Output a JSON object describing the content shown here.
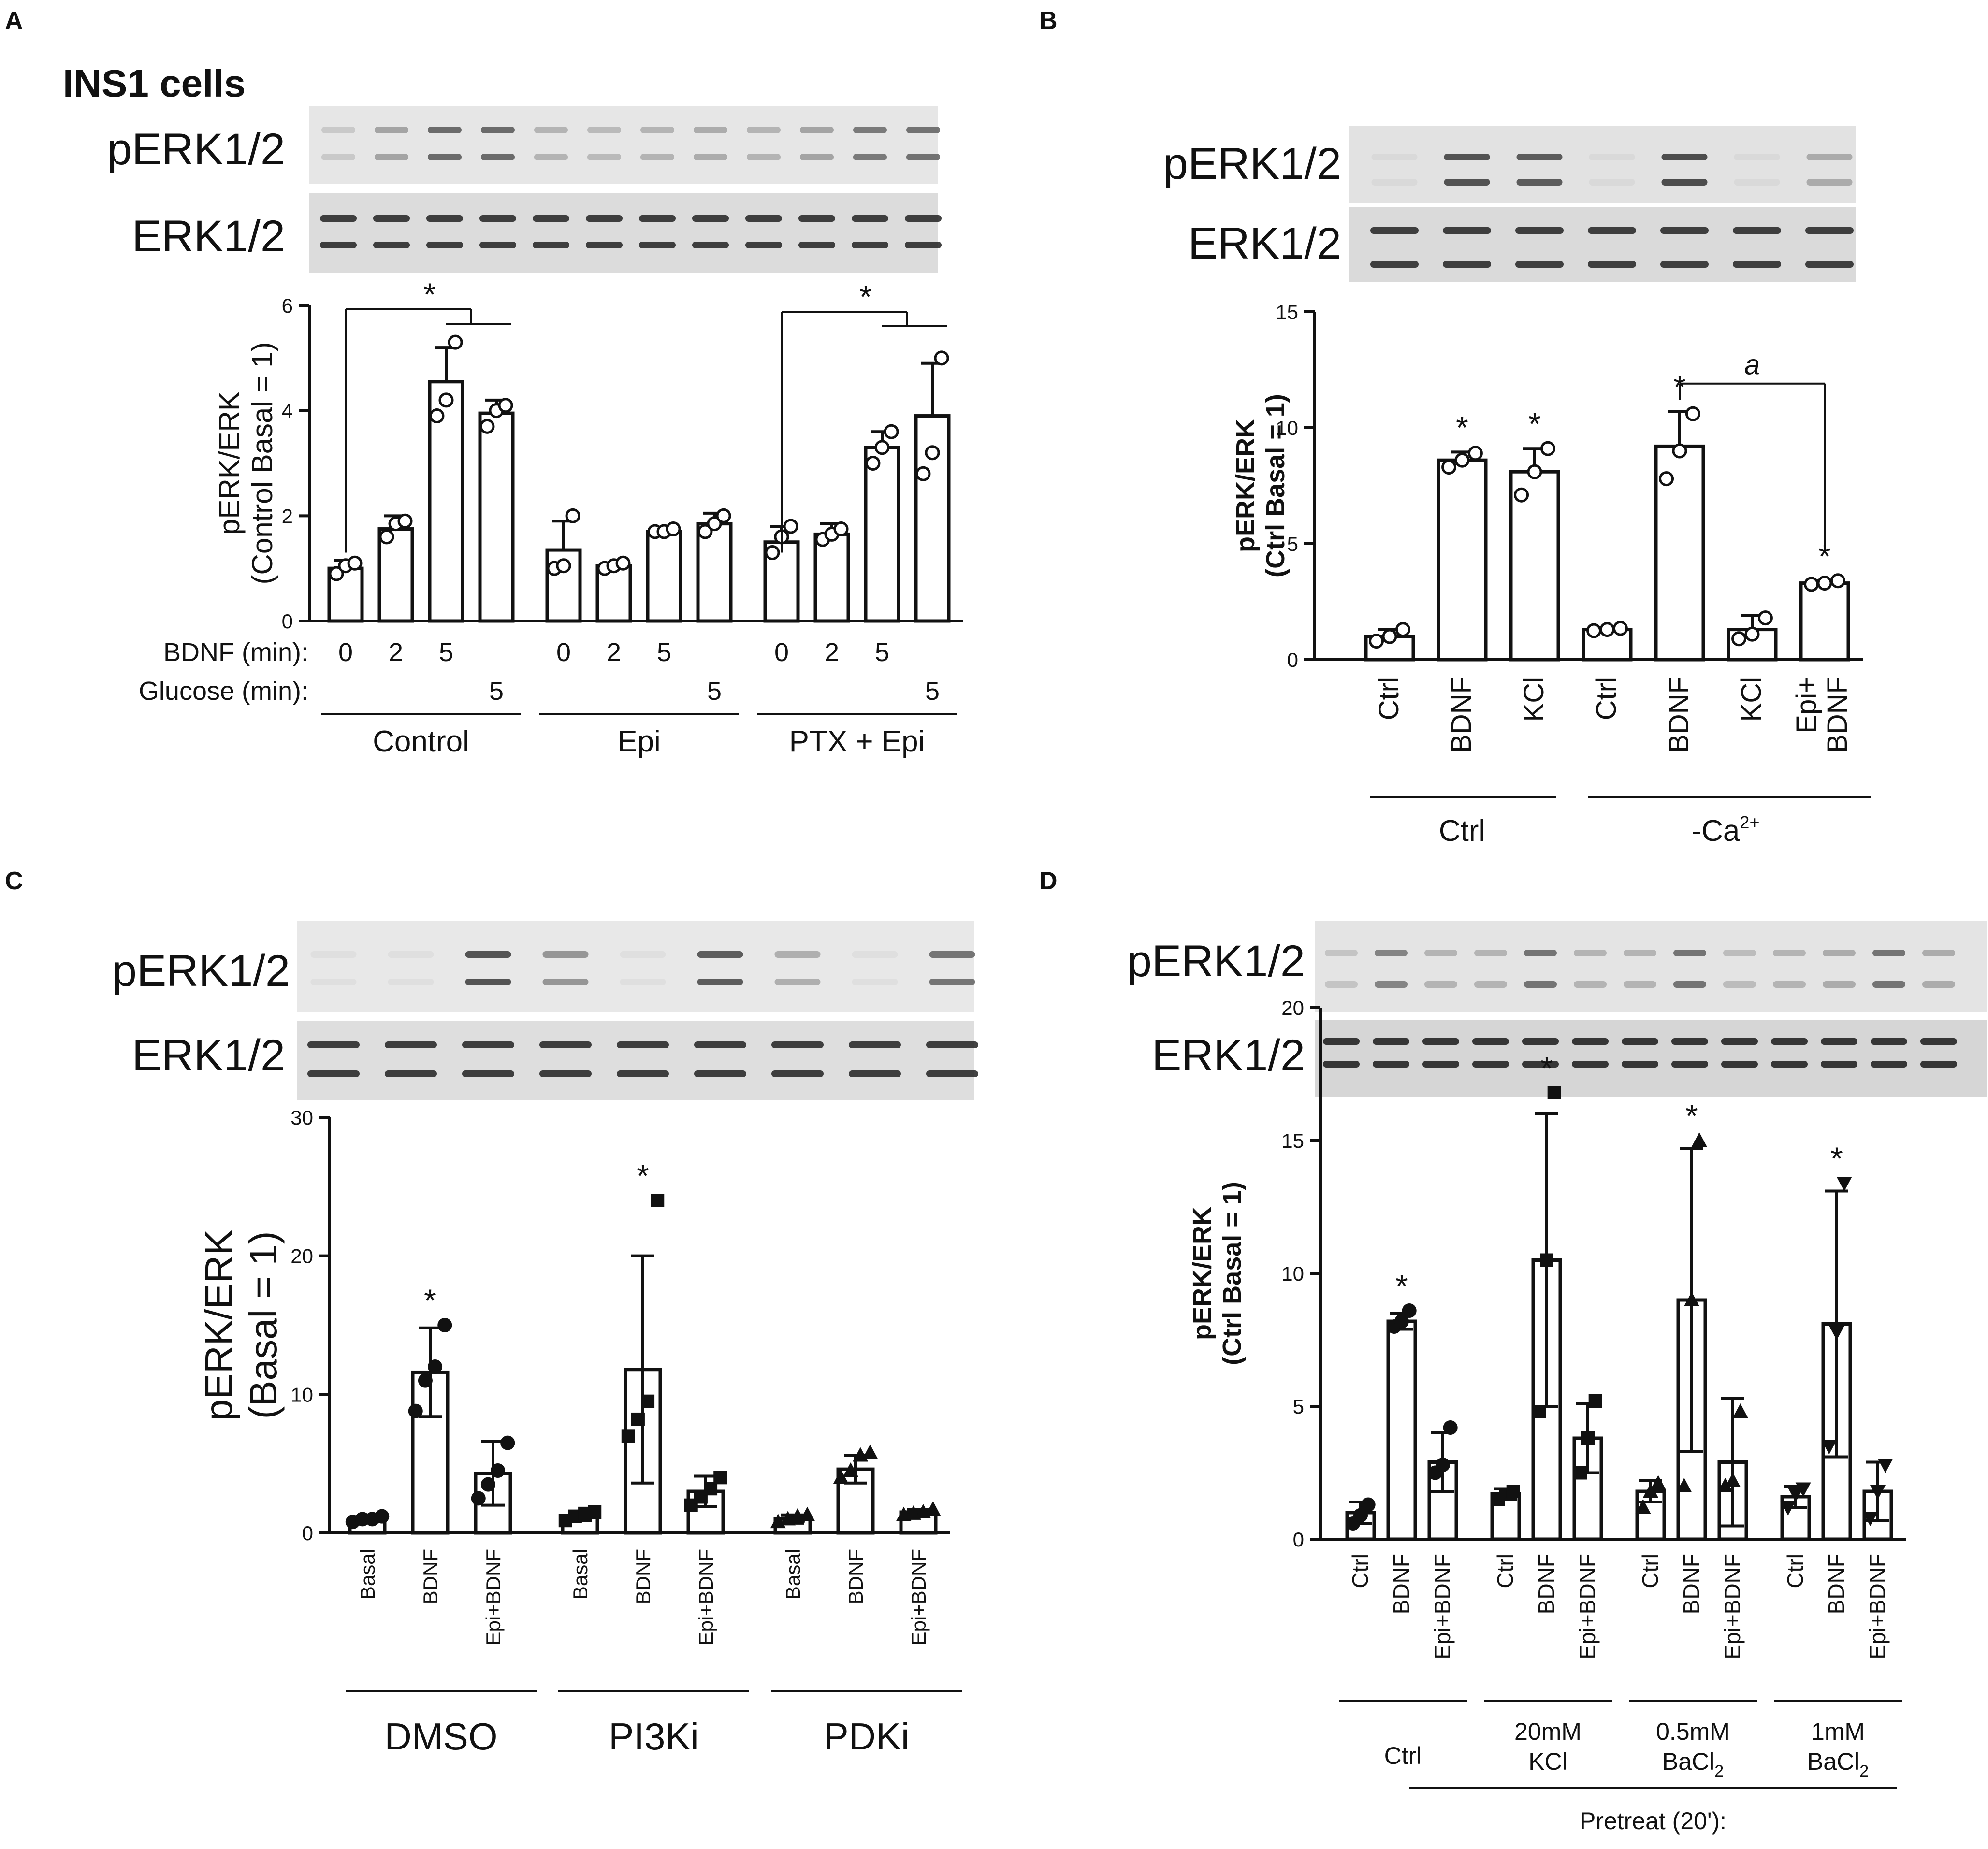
{
  "figure": {
    "panels": [
      "A",
      "B",
      "C",
      "D"
    ],
    "panel_A_title": "INS1 cells",
    "blot_labels": {
      "phospho": "pERK1/2",
      "total": "ERK1/2"
    },
    "colors": {
      "ink": "#111111",
      "blot_bg": "#e4e4e4",
      "band": "#3a3a3a"
    }
  },
  "chart_data": [
    {
      "panel": "A",
      "type": "bar",
      "title": "INS1 cells",
      "ylabel": [
        "pERK/ERK",
        "(Control Basal = 1)"
      ],
      "ylim": [
        0,
        6
      ],
      "yticks": [
        0,
        2,
        4,
        6
      ],
      "row_labels": [
        "BDNF (min):",
        "Glucose (min):"
      ],
      "bdnf_min": [
        "0",
        "2",
        "5",
        "",
        "0",
        "2",
        "5",
        "",
        "0",
        "2",
        "5",
        ""
      ],
      "glucose_min": [
        "",
        "",
        "",
        "5",
        "",
        "",
        "",
        "5",
        "",
        "",
        "",
        "5"
      ],
      "groups": [
        "Control",
        "Epi",
        "PTX + Epi"
      ],
      "values": [
        1.0,
        1.75,
        4.55,
        3.95,
        1.35,
        1.05,
        1.7,
        1.85,
        1.5,
        1.65,
        3.3,
        3.9
      ],
      "errors": [
        0.15,
        0.25,
        0.65,
        0.25,
        0.55,
        0.05,
        0.05,
        0.2,
        0.3,
        0.2,
        0.3,
        1.0
      ],
      "points": [
        [
          0.9,
          1.05,
          1.1
        ],
        [
          1.6,
          1.85,
          1.9
        ],
        [
          3.9,
          4.2,
          5.3
        ],
        [
          3.7,
          4.0,
          4.1
        ],
        [
          1.0,
          1.05,
          2.0
        ],
        [
          1.0,
          1.05,
          1.1
        ],
        [
          1.7,
          1.7,
          1.75
        ],
        [
          1.7,
          1.85,
          2.0
        ],
        [
          1.3,
          1.6,
          1.8
        ],
        [
          1.55,
          1.65,
          1.75
        ],
        [
          3.0,
          3.3,
          3.6
        ],
        [
          2.8,
          3.2,
          5.0
        ]
      ],
      "annotations": [
        "*",
        "*"
      ]
    },
    {
      "panel": "B",
      "type": "bar",
      "ylabel": [
        "pERK/ERK",
        "(Ctrl Basal = 1)"
      ],
      "ylim": [
        0,
        15
      ],
      "yticks": [
        0,
        5,
        10,
        15
      ],
      "categories": [
        "Ctrl",
        "BDNF",
        "KCl",
        "Ctrl",
        "BDNF",
        "KCl",
        "Epi+ BDNF"
      ],
      "groups": [
        "Ctrl",
        "-Ca2+"
      ],
      "group_label_ca": "-Ca",
      "group_label_ca_sup": "2+",
      "values": [
        1.0,
        8.6,
        8.1,
        1.3,
        9.2,
        1.3,
        3.3
      ],
      "errors": [
        0.3,
        0.35,
        1.0,
        0.05,
        1.5,
        0.6,
        0.1
      ],
      "points": [
        [
          0.8,
          1.0,
          1.3
        ],
        [
          8.3,
          8.6,
          8.9
        ],
        [
          7.1,
          8.1,
          9.1
        ],
        [
          1.25,
          1.3,
          1.35
        ],
        [
          7.8,
          9.0,
          10.6
        ],
        [
          0.9,
          1.1,
          1.8
        ],
        [
          3.25,
          3.3,
          3.4
        ]
      ],
      "significant": [
        "",
        "*",
        "*",
        "",
        "*",
        "",
        "*"
      ],
      "comparison_label": "a"
    },
    {
      "panel": "C",
      "type": "bar",
      "ylabel": [
        "pERK/ERK",
        "(Basal = 1)"
      ],
      "ylim": [
        0,
        30
      ],
      "yticks": [
        0,
        10,
        20,
        30
      ],
      "categories": [
        "Basal",
        "BDNF",
        "Epi+BDNF",
        "Basal",
        "BDNF",
        "Epi+BDNF",
        "Basal",
        "BDNF",
        "Epi+BDNF"
      ],
      "groups": [
        "DMSO",
        "PI3Ki",
        "PDKi"
      ],
      "values": [
        1.0,
        11.6,
        4.3,
        1.2,
        11.8,
        3.0,
        1.0,
        4.6,
        1.5
      ],
      "errors": [
        0.2,
        3.2,
        2.3,
        0.3,
        8.2,
        1.1,
        0.3,
        1.0,
        0.2
      ],
      "points": [
        [
          0.8,
          1.0,
          1.0,
          1.2
        ],
        [
          8.8,
          11.0,
          12.0,
          15.0
        ],
        [
          2.5,
          3.5,
          4.5,
          6.5
        ],
        [
          0.9,
          1.2,
          1.4,
          1.5
        ],
        [
          7.0,
          8.2,
          9.5,
          24.0
        ],
        [
          2.0,
          2.6,
          3.2,
          4.0
        ],
        [
          0.8,
          1.0,
          1.2,
          1.3
        ],
        [
          4.0,
          4.5,
          5.6,
          5.8
        ],
        [
          1.3,
          1.4,
          1.5,
          1.7
        ]
      ],
      "marker": "circle / square / triangle",
      "significant": [
        "",
        "*",
        "",
        "",
        "*",
        "",
        "",
        "",
        ""
      ]
    },
    {
      "panel": "D",
      "type": "bar",
      "ylabel": [
        "pERK/ERK",
        "(Ctrl Basal = 1)"
      ],
      "ylim": [
        0,
        20
      ],
      "yticks": [
        0,
        5,
        10,
        15,
        20
      ],
      "categories": [
        "Ctrl",
        "BDNF",
        "Epi+BDNF",
        "Ctrl",
        "BDNF",
        "Epi+BDNF",
        "Ctrl",
        "BDNF",
        "Epi+BDNF",
        "Ctrl",
        "BDNF",
        "Epi+BDNF"
      ],
      "groups": [
        [
          "Ctrl"
        ],
        [
          "20mM",
          "KCl"
        ],
        [
          "0.5mM",
          "BaCl2"
        ],
        [
          "1mM",
          "BaCl2"
        ]
      ],
      "group_labels_D": {
        "g1": "Ctrl",
        "g2a": "20mM",
        "g2b": "KCl",
        "g3a": "0.5mM",
        "g3b": "BaCl",
        "g4a": "1mM",
        "g4b": "BaCl",
        "sub": "2"
      },
      "pretreat_label": "Pretreat (20'):",
      "values": [
        1.0,
        8.2,
        2.9,
        1.7,
        10.5,
        3.8,
        1.8,
        9.0,
        2.9,
        1.6,
        8.1,
        1.8
      ],
      "errors": [
        0.4,
        0.3,
        1.1,
        0.2,
        5.5,
        1.3,
        0.4,
        5.7,
        2.4,
        0.4,
        5.0,
        1.1
      ],
      "points": [
        [
          0.6,
          0.9,
          1.3
        ],
        [
          8.0,
          8.2,
          8.6
        ],
        [
          2.5,
          2.8,
          4.2
        ],
        [
          1.5,
          1.7,
          1.8
        ],
        [
          4.8,
          10.5,
          16.8
        ],
        [
          2.5,
          3.8,
          5.2
        ],
        [
          1.2,
          1.8,
          2.1
        ],
        [
          2.0,
          9.0,
          15.0
        ],
        [
          2.0,
          2.2,
          4.8
        ],
        [
          1.2,
          1.7,
          1.9
        ],
        [
          3.5,
          7.8,
          13.4
        ],
        [
          0.8,
          1.8,
          2.8
        ]
      ],
      "significant": [
        "",
        "*",
        "",
        "",
        "*",
        "",
        "",
        "*",
        "",
        "",
        "*",
        ""
      ]
    }
  ]
}
